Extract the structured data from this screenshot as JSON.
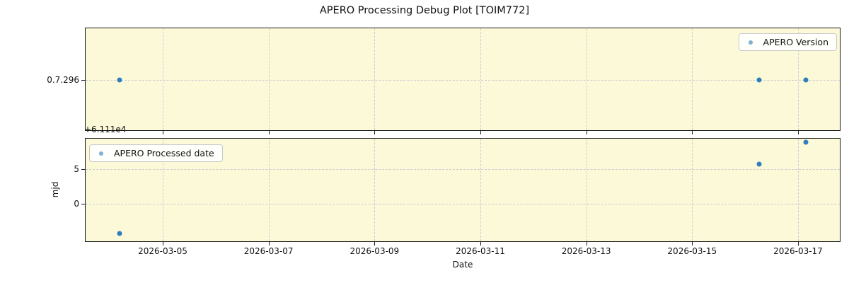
{
  "title": "APERO Processing Debug Plot [TOIM772]",
  "xlabel": "Date",
  "x_tick_labels": [
    "2026-03-05",
    "2026-03-07",
    "2026-03-09",
    "2026-03-11",
    "2026-03-13",
    "2026-03-15",
    "2026-03-17"
  ],
  "colors": {
    "axes_background": "#fcf9d8",
    "marker": "#2e7ebc",
    "legend_marker": "#7faed6",
    "grid": "#cbcbd3",
    "spine": "#1a1a1a"
  },
  "chart_data": [
    {
      "type": "scatter",
      "name": "apero-version-subplot",
      "legend": {
        "label": "APERO Version",
        "position": "upper right"
      },
      "ytick_labels": [
        "0.7.296"
      ],
      "series": [
        {
          "name": "APERO Version",
          "x_dates_march_2026_day": [
            4.18,
            16.27,
            17.15
          ],
          "y_version": [
            "0.7.296",
            "0.7.296",
            "0.7.296"
          ]
        }
      ],
      "x_range_march_2026_day": [
        3.53,
        17.8
      ],
      "grid": true
    },
    {
      "type": "scatter",
      "name": "apero-processed-date-subplot",
      "legend": {
        "label": "APERO Processed date",
        "position": "upper left"
      },
      "ylabel": "mjd",
      "y_offset_text": "+6.111e4",
      "y_offset_value": 61110,
      "ytick_labels": [
        "5",
        "0"
      ],
      "ytick_values": [
        5,
        0
      ],
      "series": [
        {
          "name": "APERO Processed date",
          "x_dates_march_2026_day": [
            4.18,
            16.27,
            17.15
          ],
          "y_mjd": [
            61105.66,
            61115.74,
            61118.92
          ]
        }
      ],
      "x_range_march_2026_day": [
        3.53,
        17.8
      ],
      "y_range_mjd": [
        61104.4,
        61119.5
      ],
      "grid": true
    }
  ]
}
